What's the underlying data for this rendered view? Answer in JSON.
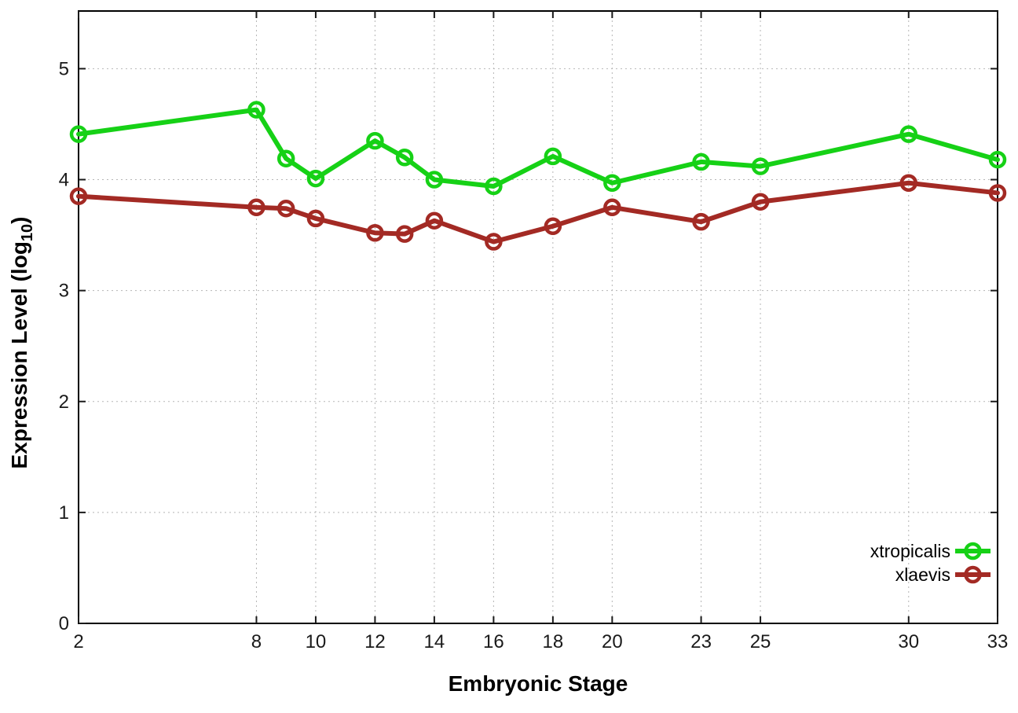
{
  "chart_data": {
    "type": "line",
    "title": "",
    "xlabel": "Embryonic Stage",
    "ylabel_prefix": "Expression Level (log",
    "ylabel_sub": "10",
    "ylabel_suffix": ")",
    "x": [
      2,
      8,
      9,
      10,
      12,
      13,
      14,
      16,
      18,
      20,
      23,
      25,
      30,
      33
    ],
    "series": [
      {
        "name": "xtropicalis",
        "color": "#16d116",
        "values": [
          4.41,
          4.63,
          4.19,
          4.01,
          4.35,
          4.2,
          4.0,
          3.94,
          4.21,
          3.97,
          4.16,
          4.12,
          4.41,
          4.18
        ]
      },
      {
        "name": "xlaevis",
        "color": "#a32a24",
        "values": [
          3.85,
          3.75,
          3.74,
          3.65,
          3.52,
          3.51,
          3.63,
          3.44,
          3.58,
          3.75,
          3.62,
          3.8,
          3.97,
          3.88
        ]
      }
    ],
    "xticks": [
      2,
      8,
      10,
      12,
      14,
      16,
      18,
      20,
      23,
      25,
      30,
      33
    ],
    "xtick_labels": [
      "2",
      "8",
      "10",
      "12",
      "14",
      "16",
      "18",
      "20",
      "23",
      "25",
      "30",
      "33"
    ],
    "yticks": [
      0,
      1,
      2,
      3,
      4,
      5
    ],
    "ytick_labels": [
      "0",
      "1",
      "2",
      "3",
      "4",
      "5"
    ],
    "xlim": [
      2,
      33
    ],
    "ylim": [
      0,
      5.52
    ],
    "grid": true,
    "grid_color": "#b5b5b5",
    "border_color": "#000000",
    "legend_position": "inside-bottom-right",
    "marker": "open-circle"
  }
}
